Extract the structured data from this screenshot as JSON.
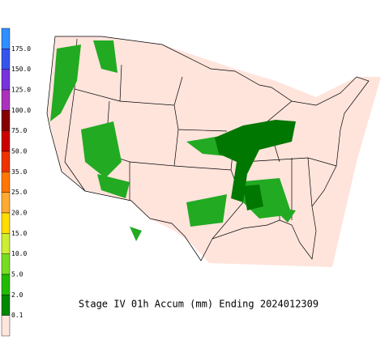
{
  "title": "Stage IV 01h Accum (mm) Ending 2024012309",
  "legend": {
    "labels": [
      "175.0",
      "150.0",
      "125.0",
      "100.0",
      "75.0",
      "50.0",
      "35.0",
      "25.0",
      "20.0",
      "15.0",
      "10.0",
      "5.0",
      "2.0",
      "0.1"
    ],
    "colors": [
      "#2f8fff",
      "#3355ee",
      "#7733dd",
      "#aa33bb",
      "#880000",
      "#cc0000",
      "#ee3300",
      "#ff7700",
      "#ffaa33",
      "#ffdd00",
      "#ccee33",
      "#77dd22",
      "#22bb00",
      "#008800",
      "#ffe6dc"
    ]
  }
}
